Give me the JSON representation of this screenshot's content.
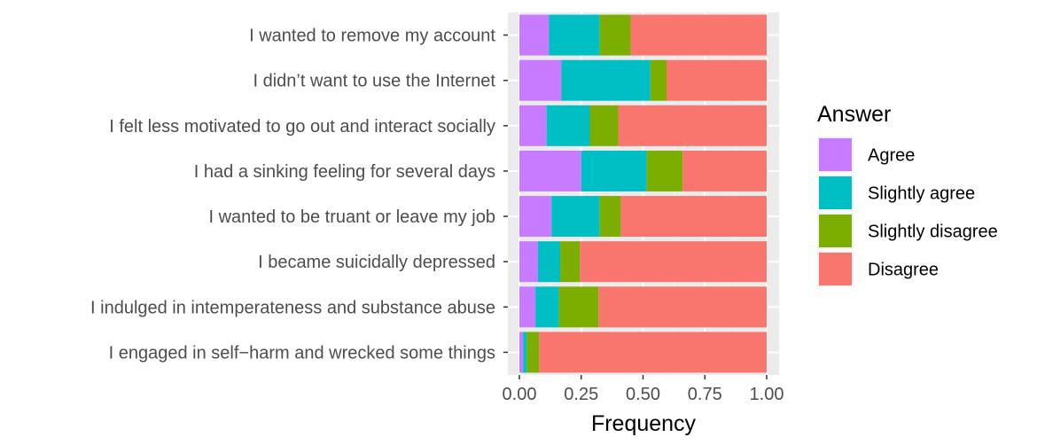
{
  "chart_data": {
    "type": "bar",
    "orientation": "horizontal",
    "stacked": true,
    "xlabel": "Frequency",
    "xlim": [
      0,
      1
    ],
    "xticks": [
      "0.00",
      "0.25",
      "0.50",
      "0.75",
      "1.00"
    ],
    "grid": true,
    "legend": {
      "title": "Answer",
      "position": "right"
    },
    "categories": [
      "I wanted to remove my account",
      "I didn’t want to use the Internet",
      "I felt less motivated to go out and interact socially",
      "I had a sinking feeling for several days",
      "I wanted to be truant or leave my job",
      "I became suicidally depressed",
      "I indulged in intemperateness and substance abuse",
      "I engaged in self−harm and wrecked some things"
    ],
    "series": [
      {
        "name": "Agree",
        "color": "#C77CFF",
        "values": [
          0.12,
          0.17,
          0.11,
          0.25,
          0.13,
          0.075,
          0.065,
          0.015
        ]
      },
      {
        "name": "Slightly agree",
        "color": "#00BFC4",
        "values": [
          0.205,
          0.36,
          0.175,
          0.265,
          0.195,
          0.09,
          0.095,
          0.015
        ]
      },
      {
        "name": "Slightly disagree",
        "color": "#7CAE00",
        "values": [
          0.125,
          0.065,
          0.115,
          0.145,
          0.085,
          0.08,
          0.16,
          0.05
        ]
      },
      {
        "name": "Disagree",
        "color": "#F8766D",
        "values": [
          0.55,
          0.405,
          0.6,
          0.34,
          0.59,
          0.755,
          0.68,
          0.92
        ]
      }
    ]
  }
}
